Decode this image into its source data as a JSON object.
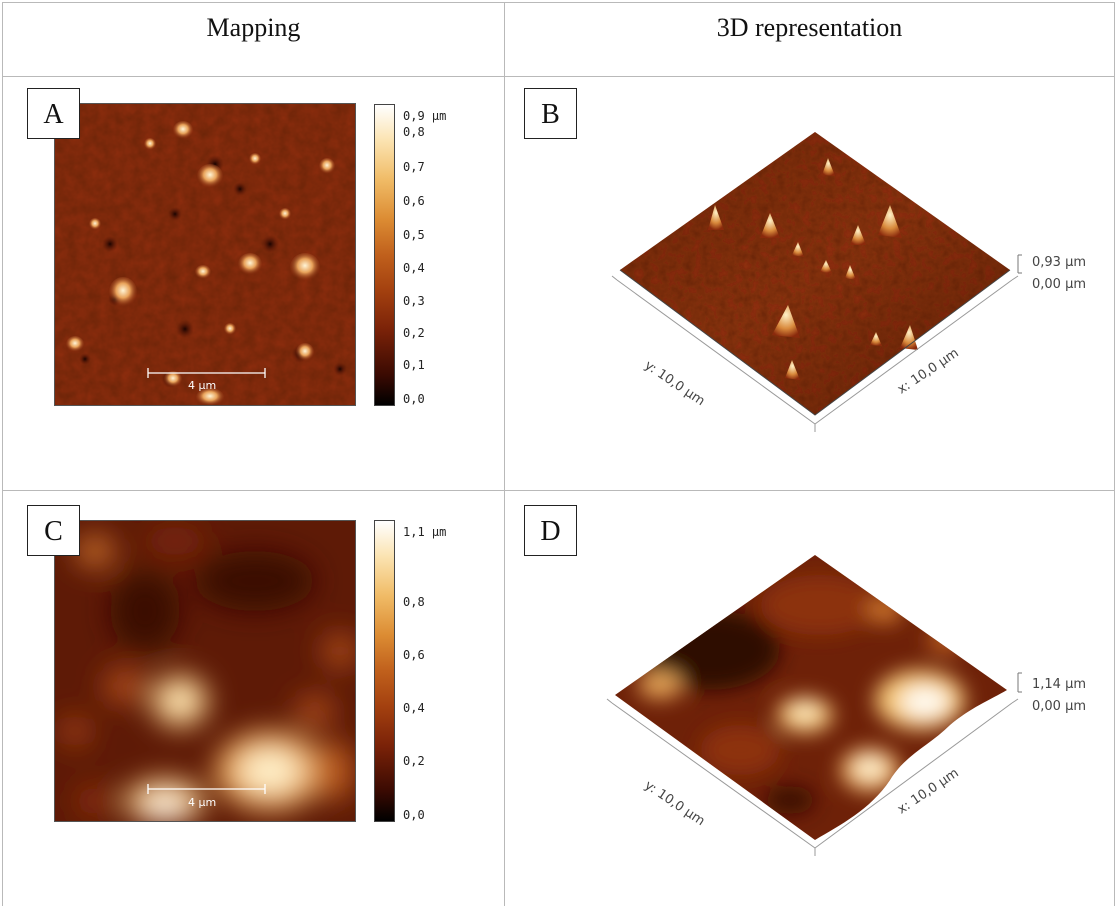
{
  "headers": {
    "mapping": "Mapping",
    "representation_3d": "3D representation"
  },
  "panels": {
    "A": {
      "label": "A",
      "colorbar_ticks": [
        "0,9 µm",
        "0,8",
        "0,7",
        "0,6",
        "0,5",
        "0,4",
        "0,3",
        "0,2",
        "0,1",
        "0,0"
      ],
      "scale_bar": "4 µm"
    },
    "B": {
      "label": "B",
      "z_max": "0,93 µm",
      "z_min": "0,00 µm",
      "y_axis": "y: 10,0 µm",
      "x_axis": "x: 10,0 µm"
    },
    "C": {
      "label": "C",
      "colorbar_ticks": [
        "1,1 µm",
        "0,8",
        "0,6",
        "0,4",
        "0,2",
        "0,0"
      ],
      "scale_bar": "4 µm"
    },
    "D": {
      "label": "D",
      "z_max": "1,14 µm",
      "z_min": "0,00 µm",
      "y_axis": "y: 10,0 µm",
      "x_axis": "x: 10,0 µm"
    }
  },
  "colors": {
    "afm_dark": "#1a0300",
    "afm_mid": "#8a2a0c",
    "afm_light": "#fff6e0",
    "border": "#b9b9b9"
  }
}
